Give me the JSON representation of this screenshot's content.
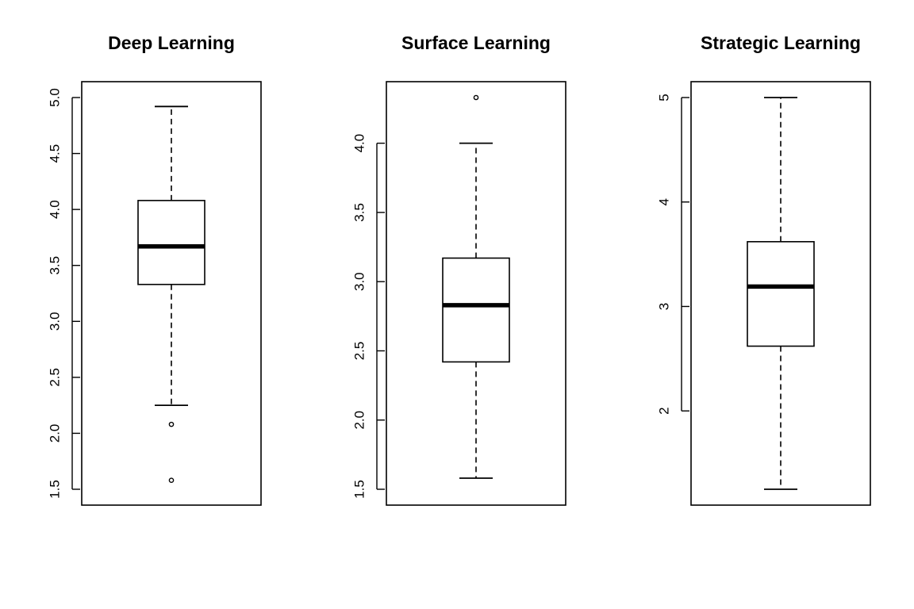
{
  "chart_data": [
    {
      "type": "boxplot",
      "title": "Deep Learning",
      "ylim": [
        1.5,
        5.0
      ],
      "yticks": [
        1.5,
        2.0,
        2.5,
        3.0,
        3.5,
        4.0,
        4.5,
        5.0
      ],
      "ytick_labels": [
        "1.5",
        "2.0",
        "2.5",
        "3.0",
        "3.5",
        "4.0",
        "4.5",
        "5.0"
      ],
      "box": {
        "whisker_low": 2.25,
        "q1": 3.33,
        "median": 3.67,
        "q3": 4.08,
        "whisker_high": 4.92
      },
      "outliers": [
        2.08,
        1.58
      ]
    },
    {
      "type": "boxplot",
      "title": "Surface Learning",
      "ylim": [
        1.5,
        4.33
      ],
      "yticks": [
        1.5,
        2.0,
        2.5,
        3.0,
        3.5,
        4.0
      ],
      "ytick_labels": [
        "1.5",
        "2.0",
        "2.5",
        "3.0",
        "3.5",
        "4.0"
      ],
      "box": {
        "whisker_low": 1.58,
        "q1": 2.42,
        "median": 2.83,
        "q3": 3.17,
        "whisker_high": 4.0
      },
      "outliers": [
        4.33
      ]
    },
    {
      "type": "boxplot",
      "title": "Strategic Learning",
      "ylim": [
        1.25,
        5.0
      ],
      "yticks": [
        2,
        3,
        4,
        5
      ],
      "ytick_labels": [
        "2",
        "3",
        "4",
        "5"
      ],
      "box": {
        "whisker_low": 1.25,
        "q1": 2.62,
        "median": 3.19,
        "q3": 3.62,
        "whisker_high": 5.0
      },
      "outliers": []
    }
  ]
}
